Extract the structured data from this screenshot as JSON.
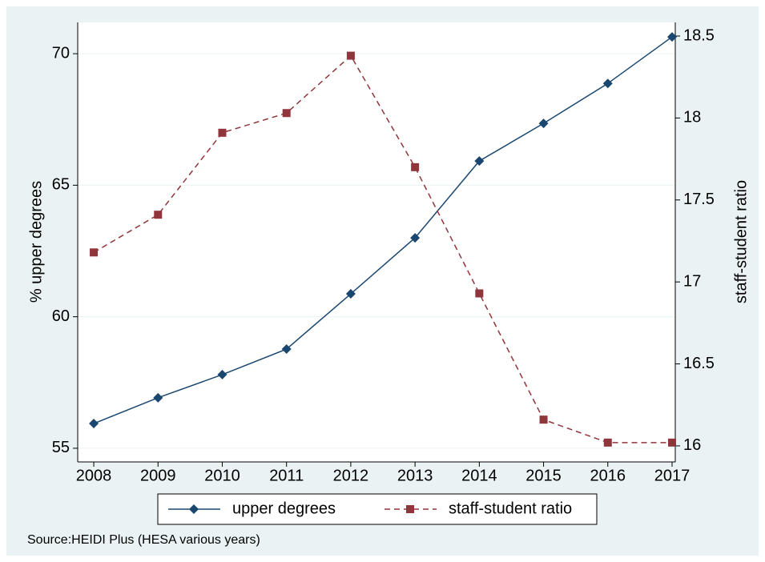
{
  "chart_data": {
    "type": "line",
    "x": [
      2008,
      2009,
      2010,
      2011,
      2012,
      2013,
      2014,
      2015,
      2016,
      2017
    ],
    "xlim": [
      2007.75,
      2017.05
    ],
    "xticks": [
      2008,
      2009,
      2010,
      2011,
      2012,
      2013,
      2014,
      2015,
      2016,
      2017
    ],
    "ylim": [
      54.48,
      71.19
    ],
    "yticks": [
      55,
      60,
      65,
      70
    ],
    "y2lim": [
      15.902,
      18.583
    ],
    "y2ticks": [
      16,
      16.5,
      17,
      17.5,
      18,
      18.5
    ],
    "ylabel": "% upper degrees",
    "y2label": "staff-student ratio",
    "grid": true,
    "series": [
      {
        "name": "upper degrees",
        "color": "#1a476f",
        "linestyle": "solid",
        "marker": "diamond",
        "values": [
          55.94,
          56.92,
          57.8,
          58.77,
          60.87,
          63.0,
          65.92,
          67.35,
          68.87,
          70.64
        ]
      },
      {
        "name": "staff-student ratio",
        "color": "#90353b",
        "linestyle": "dashed",
        "marker": "square",
        "axis": "y2",
        "values": [
          17.18,
          17.41,
          17.91,
          18.03,
          18.38,
          17.7,
          16.93,
          16.16,
          16.02,
          16.02
        ]
      }
    ],
    "note": "Source:HEIDI Plus (HESA various years)"
  }
}
